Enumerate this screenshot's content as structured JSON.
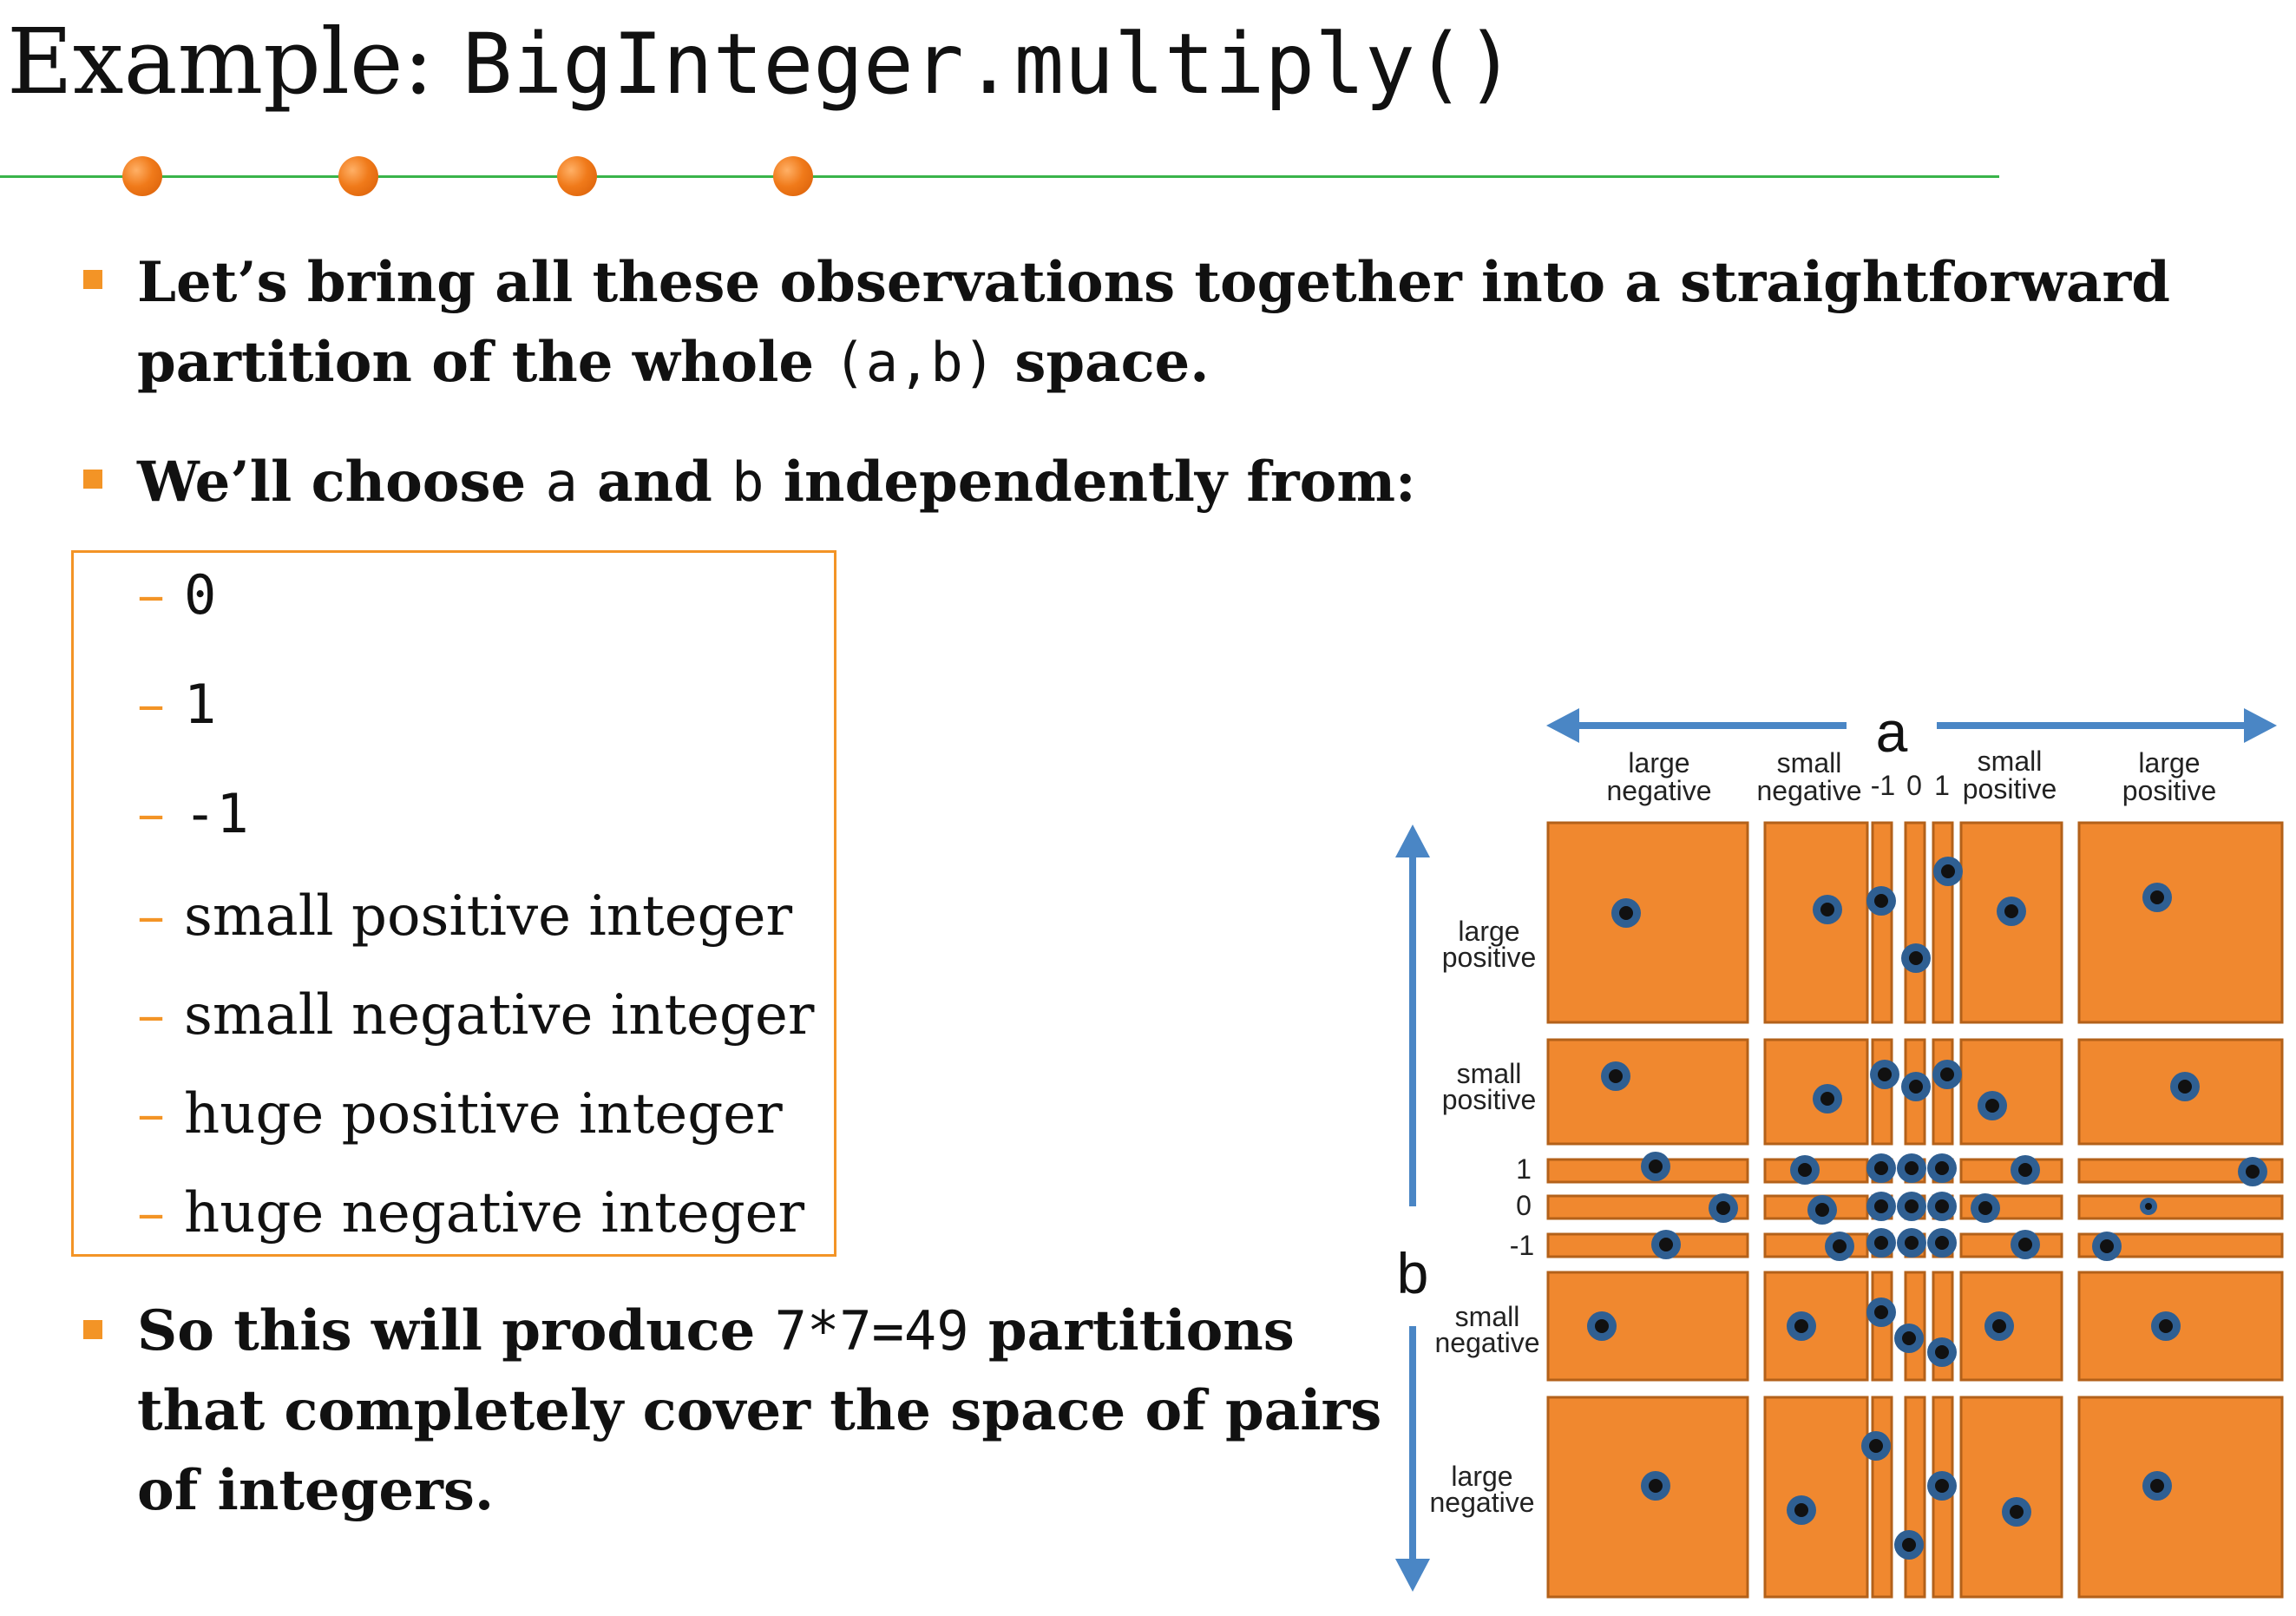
{
  "slide": {
    "title_prefix": "Example: ",
    "title_code": "BigInteger.multiply()"
  },
  "bullets": [
    {
      "line1": "Let’s bring all these observations together into a straightforward",
      "line2_before": "partition of the whole ",
      "line2_code": "(a,b)",
      "line2_after": " space."
    },
    {
      "before": "We’ll choose ",
      "code_a": "a",
      "middle": " and ",
      "code_b": "b",
      "after": " independently from:"
    },
    {
      "line1_before": "So this will produce ",
      "line1_code": "7*7=49",
      "line1_after": " partitions",
      "line2": "that completely cover the space of pairs",
      "line3": "of integers."
    }
  ],
  "choices": {
    "dash": "–",
    "code_items": [
      "0",
      "1",
      "-1"
    ],
    "text_items": [
      "small positive integer",
      "small negative integer",
      "huge positive integer",
      "huge negative integer"
    ]
  },
  "diagram": {
    "a_label": "a",
    "b_label": "b",
    "col_labels": {
      "large_negative": [
        "large",
        "negative"
      ],
      "small_negative": [
        "small",
        "negative"
      ],
      "minus_one": "-1",
      "zero": "0",
      "one": "1",
      "small_positive": [
        "small",
        "positive"
      ],
      "large_positive": [
        "large",
        "positive"
      ]
    },
    "row_labels": {
      "large_positive": [
        "large",
        "positive"
      ],
      "small_positive": [
        "small",
        "positive"
      ],
      "one": "1",
      "zero": "0",
      "minus_one": "-1",
      "small_negative": [
        "small",
        "negative"
      ],
      "large_negative": [
        "large",
        "negative"
      ]
    },
    "colors": {
      "cell": "#f0882f",
      "cell_border": "#b3611a",
      "arrow": "#4a86c5",
      "point_ring": "#2f5f92",
      "point": "#111111"
    }
  }
}
